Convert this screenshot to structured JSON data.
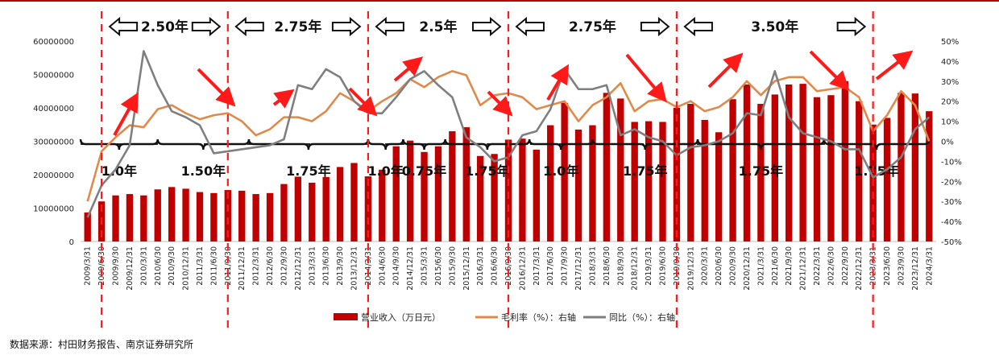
{
  "chart_data": {
    "type": "bar",
    "categories": [
      "2009/3/31",
      "2009/6/30",
      "2009/9/30",
      "2009/12/31",
      "2010/3/31",
      "2010/6/30",
      "2010/9/30",
      "2010/12/31",
      "2011/3/31",
      "2011/6/30",
      "2011/9/30",
      "2011/12/31",
      "2012/3/31",
      "2012/6/30",
      "2012/9/30",
      "2012/12/31",
      "2013/3/31",
      "2013/6/30",
      "2013/9/30",
      "2013/12/31",
      "2014/3/31",
      "2014/6/30",
      "2014/9/30",
      "2014/12/31",
      "2015/3/31",
      "2015/6/30",
      "2015/9/30",
      "2015/12/31",
      "2016/3/31",
      "2016/6/30",
      "2016/9/30",
      "2016/12/31",
      "2017/3/31",
      "2017/6/30",
      "2017/9/30",
      "2017/12/31",
      "2018/3/31",
      "2018/6/30",
      "2018/9/30",
      "2018/12/31",
      "2019/3/31",
      "2019/6/30",
      "2019/9/30",
      "2019/12/31",
      "2020/3/31",
      "2020/6/30",
      "2020/9/30",
      "2020/12/31",
      "2021/3/31",
      "2021/6/30",
      "2021/9/30",
      "2021/12/31",
      "2022/3/31",
      "2022/6/30",
      "2022/9/30",
      "2022/12/31",
      "2023/3/31",
      "2023/6/30",
      "2023/9/30",
      "2023/12/31",
      "2024/3/31"
    ],
    "series": [
      {
        "name": "营业收入（万日元）",
        "axis": "left",
        "color": "#c00000",
        "values": [
          8700000,
          12000000,
          13800000,
          14200000,
          13800000,
          15600000,
          16300000,
          15800000,
          14800000,
          14500000,
          15400000,
          15200000,
          14200000,
          14500000,
          17200000,
          19400000,
          17600000,
          19300000,
          22300000,
          23500000,
          19500000,
          21500000,
          28500000,
          30200000,
          26800000,
          28500000,
          33000000,
          34200000,
          25600000,
          26200000,
          30500000,
          30800000,
          27500000,
          34800000,
          41500000,
          33500000,
          34800000,
          44500000,
          42800000,
          35800000,
          36000000,
          35800000,
          40000000,
          41200000,
          36400000,
          32700000,
          42600000,
          47000000,
          41200000,
          44000000,
          47000000,
          47200000,
          43200000,
          43800000,
          48000000,
          42000000,
          35000000,
          37000000,
          44500000,
          44300000,
          39000000
        ]
      },
      {
        "name": "毛利率（%）：右轴",
        "axis": "right",
        "color": "#e08a4a",
        "values": [
          -30,
          -5,
          2,
          8,
          7,
          16,
          18,
          14,
          11,
          13,
          14,
          10,
          3,
          6,
          12,
          12,
          10,
          15,
          24,
          20,
          15,
          20,
          24,
          31,
          27,
          32,
          35,
          33,
          18,
          23,
          24,
          22,
          16,
          18,
          20,
          10,
          18,
          22,
          29,
          15,
          20,
          21,
          17,
          20,
          15,
          17,
          22,
          30,
          23,
          30,
          32,
          32,
          25,
          26,
          27,
          22,
          5,
          13,
          25,
          18,
          0
        ]
      },
      {
        "name": "同比（%）：右轴",
        "axis": "right",
        "color": "#7f7f7f",
        "values": [
          -38,
          -22,
          -14,
          -2,
          45,
          28,
          15,
          12,
          8,
          -6,
          -5,
          -4,
          -3,
          -2,
          1,
          28,
          26,
          36,
          32,
          20,
          14,
          14,
          22,
          31,
          35,
          28,
          22,
          2,
          -3,
          -10,
          -8,
          3,
          5,
          16,
          36,
          26,
          26,
          28,
          3,
          6,
          2,
          0,
          -7,
          -3,
          -2,
          0,
          4,
          14,
          13,
          35,
          12,
          4,
          2,
          0,
          -4,
          -4,
          -18,
          -14,
          -8,
          6,
          12
        ]
      }
    ],
    "ylim_left": [
      0,
      60000000
    ],
    "yticks_left": [
      "60000000",
      "50000000",
      "40000000",
      "30000000",
      "20000000",
      "10000000",
      "0"
    ],
    "ylim_right": [
      -50,
      50
    ],
    "yticks_right": [
      "50%",
      "40%",
      "30%",
      "20%",
      "10%",
      "0%",
      "-10%",
      "-20%",
      "-30%",
      "-40%",
      "-50%"
    ],
    "legend_position": "bottom-center",
    "legend": [
      "营业收入（万日元）",
      "毛利率（%）：右轴",
      "同比（%）：右轴"
    ],
    "cycle_annotations": [
      "2.50年",
      "2.75年",
      "2.5年",
      "2.75年",
      "3.50年"
    ],
    "sub_cycle_annotations": [
      "1.0年",
      "1.50年",
      "1.75年",
      "1.0年",
      "0.75年",
      "1.75年",
      "1.0年",
      "1.75年",
      "1.75年",
      "1.75年"
    ],
    "divider_dates": [
      "2009/6/30",
      "2011/9/30",
      "2014/3/31",
      "2016/9/30",
      "2019/9/30",
      "2023/3/31"
    ]
  },
  "source": "数据来源：村田财务报告、南京证券研究所"
}
